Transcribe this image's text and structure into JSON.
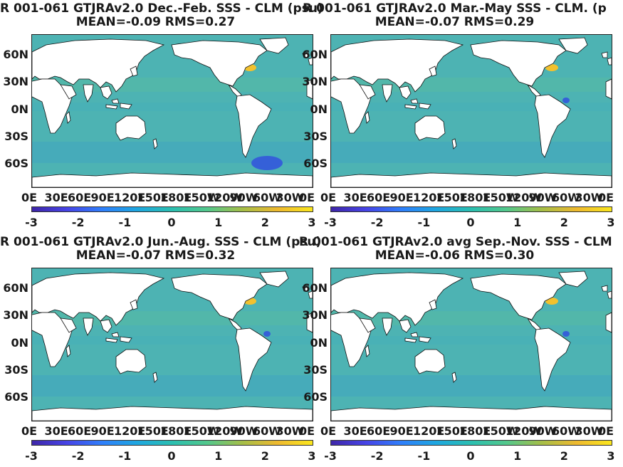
{
  "panels": [
    {
      "title": "R 001-061 GTJRAv2.0  Dec.-Feb. SSS - CLM (psu)",
      "stats": "MEAN=-0.09   RMS=0.27"
    },
    {
      "title": "R 001-061 GTJRAv2.0 Mar.-May SSS - CLM. (p",
      "stats": "MEAN=-0.07   RMS=0.29"
    },
    {
      "title": "R 001-061 GTJRAv2.0 Jun.-Aug. SSS - CLM (psu)",
      "stats": "MEAN=-0.07   RMS=0.32"
    },
    {
      "title": "R 001-061 GTJRAv2.0 avg Sep.-Nov. SSS - CLM",
      "stats": "MEAN=-0.06   RMS=0.30"
    }
  ],
  "lat_labels": [
    "60N",
    "30N",
    "0N",
    "30S",
    "60S"
  ],
  "lon_labels": [
    "0E",
    "30E",
    "60E",
    "90E",
    "120E",
    "150E",
    "180E",
    "150W",
    "120W",
    "90W",
    "60W",
    "30W",
    "0E"
  ],
  "colorbar": {
    "ticks": [
      "-3",
      "-2",
      "-1",
      "0",
      "1",
      "2",
      "3"
    ],
    "range": [
      -3,
      3
    ],
    "colormap": "parula"
  },
  "colors": {
    "ocean": "#4db3b3",
    "land": "#ffffff",
    "high_anomaly": "#f2c12e",
    "low_anomaly": "#3560d8"
  }
}
